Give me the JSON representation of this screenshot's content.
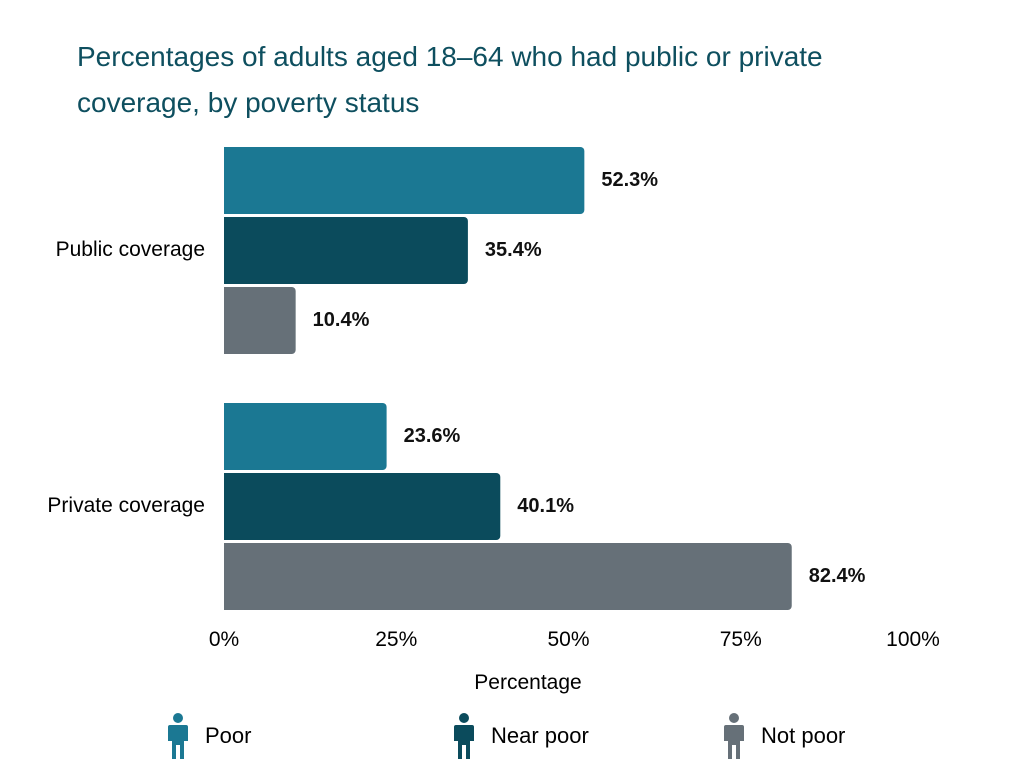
{
  "title": "Percentages of adults aged 18–64 who had public or private coverage, by poverty status",
  "chart_data": {
    "type": "bar",
    "orientation": "horizontal",
    "title": "Percentages of adults aged 18–64 who had public or private coverage, by poverty status",
    "xlabel": "Percentage",
    "ylabel": "",
    "xlim": [
      0,
      100
    ],
    "x_ticks": [
      0,
      25,
      50,
      75,
      100
    ],
    "x_tick_labels": [
      "0%",
      "25%",
      "50%",
      "75%",
      "100%"
    ],
    "categories": [
      "Public coverage",
      "Private coverage"
    ],
    "series": [
      {
        "name": "Poor",
        "values": [
          52.3,
          23.6
        ],
        "color": "#1b7893",
        "labels": [
          "52.3%",
          "23.6%"
        ]
      },
      {
        "name": "Near poor",
        "values": [
          35.4,
          40.1
        ],
        "color": "#0b4b5c",
        "labels": [
          "35.4%",
          "40.1%"
        ]
      },
      {
        "name": "Not poor",
        "values": [
          10.4,
          82.4
        ],
        "color": "#667078",
        "labels": [
          "10.4%",
          "82.4%"
        ]
      }
    ],
    "legend_position": "bottom",
    "grid": false
  },
  "legend": {
    "items": [
      {
        "label": "Poor",
        "color": "#1b7893",
        "icon": "person-icon"
      },
      {
        "label": "Near poor",
        "color": "#0b4b5c",
        "icon": "person-icon"
      },
      {
        "label": "Not poor",
        "color": "#667078",
        "icon": "person-icon"
      }
    ]
  }
}
